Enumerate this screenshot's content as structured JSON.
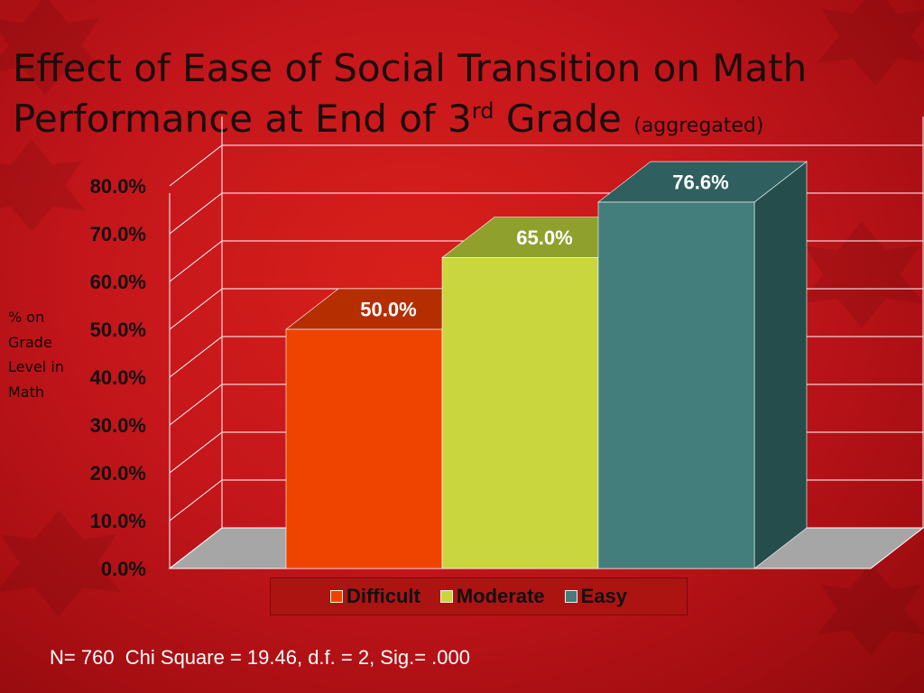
{
  "title": {
    "line1": "Effect of Ease of Social Transition on Math",
    "line2_main": "Performance  at End of 3",
    "line2_sup": "rd",
    "line2_after": " Grade ",
    "line2_small": "(aggregated)"
  },
  "ylabel_lines": [
    "% on",
    "Grade",
    "Level in",
    "Math"
  ],
  "footnote": "N= 760  Chi Square = 19.46, d.f. = 2, Sig.= .000",
  "legend": [
    {
      "label": "Difficult",
      "color": "#ee4400"
    },
    {
      "label": "Moderate",
      "color": "#c9d63e"
    },
    {
      "label": "Easy",
      "color": "#437d7c"
    }
  ],
  "chart_data": {
    "type": "bar",
    "categories": [
      "Difficult",
      "Moderate",
      "Easy"
    ],
    "values": [
      50.0,
      65.0,
      76.6
    ],
    "data_labels": [
      "50.0%",
      "65.0%",
      "76.6%"
    ],
    "y_ticks": [
      "0.0%",
      "10.0%",
      "20.0%",
      "30.0%",
      "40.0%",
      "50.0%",
      "60.0%",
      "70.0%",
      "80.0%"
    ],
    "ylim": [
      0,
      80
    ],
    "ylabel": "% on Grade Level in Math",
    "grid": true,
    "legend_position": "bottom",
    "style": "3d-column",
    "colors": {
      "front": [
        "#ee4400",
        "#c9d63e",
        "#437d7c"
      ],
      "top": [
        "#b52e00",
        "#8fa12c",
        "#2f5f5e"
      ],
      "side": [
        "#a02700",
        "#8a9a28",
        "#244d4c"
      ],
      "floor": "#a6a6a6",
      "grid": "#ffffff"
    }
  }
}
